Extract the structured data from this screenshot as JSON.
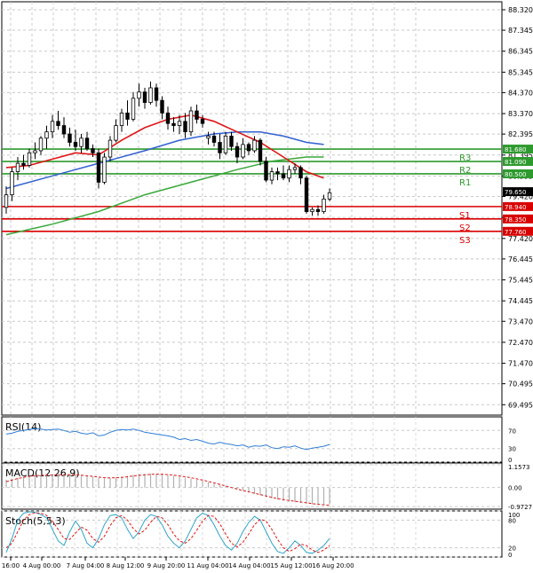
{
  "chart_data": [
    {
      "type": "candlestick",
      "ylim": [
        69.0,
        88.7
      ],
      "y_ticks": [
        "88.320",
        "87.345",
        "86.345",
        "85.345",
        "84.370",
        "83.370",
        "82.395",
        "81.395",
        "80.395",
        "79.420",
        "78.420",
        "77.420",
        "76.445",
        "75.445",
        "74.445",
        "73.470",
        "72.470",
        "71.470",
        "70.495",
        "69.495"
      ],
      "x_ticks": [
        "16:00",
        "4 Aug 00:00",
        "7 Aug 04:00",
        "8 Aug 12:00",
        "9 Aug 20:00",
        "11 Aug 04:00",
        "14 Aug 04:00",
        "15 Aug 12:00",
        "16 Aug 20:00"
      ],
      "candles": [
        {
          "o": 78.9,
          "h": 79.9,
          "l": 78.6,
          "c": 79.5
        },
        {
          "o": 79.5,
          "h": 80.8,
          "l": 79.2,
          "c": 80.6
        },
        {
          "o": 80.6,
          "h": 81.3,
          "l": 80.2,
          "c": 81.0
        },
        {
          "o": 81.0,
          "h": 81.4,
          "l": 80.7,
          "c": 80.9
        },
        {
          "o": 80.9,
          "h": 81.7,
          "l": 80.8,
          "c": 81.5
        },
        {
          "o": 81.5,
          "h": 82.0,
          "l": 81.2,
          "c": 81.6
        },
        {
          "o": 81.6,
          "h": 82.3,
          "l": 81.4,
          "c": 82.2
        },
        {
          "o": 82.2,
          "h": 82.8,
          "l": 81.7,
          "c": 82.5
        },
        {
          "o": 82.5,
          "h": 83.3,
          "l": 82.2,
          "c": 83.0
        },
        {
          "o": 83.0,
          "h": 83.5,
          "l": 82.6,
          "c": 82.8
        },
        {
          "o": 82.8,
          "h": 83.2,
          "l": 82.2,
          "c": 82.4
        },
        {
          "o": 82.4,
          "h": 82.7,
          "l": 81.8,
          "c": 82.0
        },
        {
          "o": 82.0,
          "h": 82.6,
          "l": 81.6,
          "c": 81.8
        },
        {
          "o": 81.8,
          "h": 82.4,
          "l": 81.5,
          "c": 82.2
        },
        {
          "o": 82.2,
          "h": 82.5,
          "l": 81.6,
          "c": 81.7
        },
        {
          "o": 81.7,
          "h": 81.9,
          "l": 81.3,
          "c": 81.5
        },
        {
          "o": 81.5,
          "h": 81.7,
          "l": 79.8,
          "c": 80.1
        },
        {
          "o": 80.1,
          "h": 81.5,
          "l": 80.0,
          "c": 81.3
        },
        {
          "o": 81.3,
          "h": 82.3,
          "l": 81.1,
          "c": 82.1
        },
        {
          "o": 82.1,
          "h": 83.1,
          "l": 82.0,
          "c": 82.8
        },
        {
          "o": 82.8,
          "h": 83.6,
          "l": 82.5,
          "c": 83.4
        },
        {
          "o": 83.4,
          "h": 84.0,
          "l": 82.8,
          "c": 83.1
        },
        {
          "o": 83.1,
          "h": 84.4,
          "l": 83.0,
          "c": 84.1
        },
        {
          "o": 84.1,
          "h": 84.8,
          "l": 83.7,
          "c": 84.4
        },
        {
          "o": 84.4,
          "h": 84.6,
          "l": 83.6,
          "c": 83.9
        },
        {
          "o": 83.9,
          "h": 84.9,
          "l": 83.8,
          "c": 84.6
        },
        {
          "o": 84.6,
          "h": 84.8,
          "l": 83.7,
          "c": 84.0
        },
        {
          "o": 84.0,
          "h": 84.2,
          "l": 83.1,
          "c": 83.4
        },
        {
          "o": 83.4,
          "h": 83.7,
          "l": 82.6,
          "c": 82.9
        },
        {
          "o": 82.9,
          "h": 83.2,
          "l": 82.5,
          "c": 82.8
        },
        {
          "o": 82.8,
          "h": 83.3,
          "l": 82.4,
          "c": 83.0
        },
        {
          "o": 83.0,
          "h": 83.4,
          "l": 82.2,
          "c": 82.5
        },
        {
          "o": 82.5,
          "h": 83.7,
          "l": 82.3,
          "c": 83.5
        },
        {
          "o": 83.5,
          "h": 83.8,
          "l": 82.9,
          "c": 83.1
        },
        {
          "o": 83.1,
          "h": 83.3,
          "l": 82.7,
          "c": 82.9
        },
        {
          "o": 82.2,
          "h": 82.5,
          "l": 81.9,
          "c": 82.3
        },
        {
          "o": 82.3,
          "h": 82.5,
          "l": 81.8,
          "c": 82.0
        },
        {
          "o": 82.0,
          "h": 82.4,
          "l": 81.2,
          "c": 81.5
        },
        {
          "o": 81.5,
          "h": 82.5,
          "l": 81.4,
          "c": 82.3
        },
        {
          "o": 82.3,
          "h": 82.5,
          "l": 81.6,
          "c": 81.8
        },
        {
          "o": 81.8,
          "h": 82.0,
          "l": 81.0,
          "c": 81.3
        },
        {
          "o": 81.3,
          "h": 82.2,
          "l": 81.2,
          "c": 81.9
        },
        {
          "o": 81.9,
          "h": 82.0,
          "l": 81.4,
          "c": 81.6
        },
        {
          "o": 81.6,
          "h": 82.3,
          "l": 81.5,
          "c": 82.1
        },
        {
          "o": 82.1,
          "h": 82.2,
          "l": 80.9,
          "c": 81.1
        },
        {
          "o": 81.1,
          "h": 81.3,
          "l": 80.1,
          "c": 80.2
        },
        {
          "o": 80.2,
          "h": 80.8,
          "l": 80.0,
          "c": 80.6
        },
        {
          "o": 80.6,
          "h": 80.8,
          "l": 80.2,
          "c": 80.5
        },
        {
          "o": 80.5,
          "h": 80.9,
          "l": 80.2,
          "c": 80.3
        },
        {
          "o": 80.3,
          "h": 80.9,
          "l": 80.1,
          "c": 80.7
        },
        {
          "o": 80.7,
          "h": 81.0,
          "l": 80.5,
          "c": 80.8
        },
        {
          "o": 80.8,
          "h": 80.9,
          "l": 80.0,
          "c": 80.3
        },
        {
          "o": 80.3,
          "h": 80.4,
          "l": 78.6,
          "c": 78.7
        },
        {
          "o": 78.7,
          "h": 78.9,
          "l": 78.5,
          "c": 78.8
        },
        {
          "o": 78.8,
          "h": 79.0,
          "l": 78.5,
          "c": 78.7
        },
        {
          "o": 78.7,
          "h": 79.5,
          "l": 78.6,
          "c": 79.3
        },
        {
          "o": 79.3,
          "h": 79.8,
          "l": 79.2,
          "c": 79.6
        }
      ],
      "ma_red": [
        [
          0,
          80.8
        ],
        [
          4,
          80.9
        ],
        [
          8,
          81.2
        ],
        [
          12,
          81.5
        ],
        [
          16,
          81.4
        ],
        [
          20,
          82.1
        ],
        [
          24,
          82.7
        ],
        [
          28,
          83.1
        ],
        [
          32,
          83.3
        ],
        [
          36,
          83.0
        ],
        [
          40,
          82.5
        ],
        [
          44,
          82.0
        ],
        [
          48,
          81.3
        ],
        [
          52,
          80.6
        ],
        [
          55,
          80.3
        ]
      ],
      "ma_blue": [
        [
          0,
          79.8
        ],
        [
          8,
          80.4
        ],
        [
          16,
          81.0
        ],
        [
          24,
          81.6
        ],
        [
          30,
          82.1
        ],
        [
          36,
          82.4
        ],
        [
          40,
          82.5
        ],
        [
          44,
          82.5
        ],
        [
          48,
          82.3
        ],
        [
          52,
          82.0
        ],
        [
          55,
          81.9
        ]
      ],
      "ma_green": [
        [
          0,
          77.6
        ],
        [
          8,
          78.1
        ],
        [
          16,
          78.7
        ],
        [
          24,
          79.5
        ],
        [
          32,
          80.1
        ],
        [
          40,
          80.7
        ],
        [
          46,
          81.1
        ],
        [
          52,
          81.3
        ],
        [
          55,
          81.3
        ]
      ],
      "levels": [
        {
          "name": "R3",
          "value": 81.68,
          "label": "81.680",
          "color": "#2e9a2e"
        },
        {
          "name": "R2",
          "value": 81.09,
          "label": "81.090",
          "color": "#2e9a2e"
        },
        {
          "name": "R1",
          "value": 80.5,
          "label": "80.500",
          "color": "#2e9a2e"
        },
        {
          "name": "S1",
          "value": 78.94,
          "label": "78.940",
          "color": "#d90000"
        },
        {
          "name": "S2",
          "value": 78.35,
          "label": "78.350",
          "color": "#d90000"
        },
        {
          "name": "S3",
          "value": 77.76,
          "label": "77.760",
          "color": "#d90000"
        }
      ],
      "current_price": {
        "value": 79.65,
        "label": "79.650"
      }
    },
    {
      "type": "line",
      "title": "RSI(14)",
      "y_ticks": [
        "70",
        "30",
        "0"
      ],
      "ylim": [
        0,
        100
      ],
      "values": [
        62,
        64,
        68,
        70,
        72,
        74,
        73,
        71,
        72,
        73,
        70,
        66,
        68,
        64,
        62,
        65,
        58,
        60,
        66,
        70,
        72,
        71,
        73,
        70,
        66,
        64,
        62,
        60,
        58,
        55,
        50,
        52,
        48,
        50,
        46,
        42,
        40,
        44,
        41,
        39,
        36,
        38,
        33,
        36,
        35,
        38,
        32,
        30,
        34,
        33,
        36,
        31,
        28,
        31,
        33,
        35,
        39
      ]
    },
    {
      "type": "bar",
      "title": "MACD(12,26,9)",
      "y_ticks": [
        "1.1573",
        "0.00",
        "-0.9727"
      ],
      "ylim": [
        -1.1,
        1.25
      ],
      "hist": [
        0.4,
        0.45,
        0.5,
        0.55,
        0.6,
        0.62,
        0.64,
        0.66,
        0.68,
        0.7,
        0.7,
        0.68,
        0.66,
        0.62,
        0.58,
        0.55,
        0.5,
        0.46,
        0.48,
        0.52,
        0.55,
        0.6,
        0.65,
        0.68,
        0.7,
        0.72,
        0.71,
        0.68,
        0.64,
        0.6,
        0.55,
        0.5,
        0.45,
        0.4,
        0.34,
        0.28,
        0.22,
        0.15,
        0.08,
        0.0,
        -0.08,
        -0.16,
        -0.24,
        -0.32,
        -0.4,
        -0.48,
        -0.56,
        -0.62,
        -0.68,
        -0.72,
        -0.75,
        -0.78,
        -0.82,
        -0.86,
        -0.88,
        -0.88,
        -0.86
      ],
      "signal": [
        0.3,
        0.38,
        0.46,
        0.52,
        0.57,
        0.6,
        0.62,
        0.63,
        0.64,
        0.65,
        0.66,
        0.66,
        0.65,
        0.63,
        0.6,
        0.57,
        0.53,
        0.5,
        0.49,
        0.5,
        0.52,
        0.55,
        0.59,
        0.62,
        0.65,
        0.67,
        0.68,
        0.68,
        0.66,
        0.63,
        0.59,
        0.55,
        0.5,
        0.44,
        0.38,
        0.31,
        0.24,
        0.16,
        0.08,
        0.0,
        -0.08,
        -0.15,
        -0.22,
        -0.29,
        -0.36,
        -0.43,
        -0.5,
        -0.56,
        -0.61,
        -0.66,
        -0.7,
        -0.74,
        -0.78,
        -0.82,
        -0.85,
        -0.88,
        -0.9
      ]
    },
    {
      "type": "line",
      "title": "Stoch(5,5,3)",
      "y_ticks": [
        "100",
        "80",
        "20",
        "0"
      ],
      "ylim": [
        0,
        100
      ],
      "k": [
        10,
        40,
        80,
        95,
        98,
        97,
        92,
        85,
        60,
        35,
        25,
        55,
        78,
        60,
        30,
        20,
        40,
        70,
        90,
        92,
        85,
        60,
        40,
        55,
        80,
        92,
        88,
        70,
        45,
        30,
        20,
        35,
        60,
        85,
        95,
        90,
        70,
        45,
        25,
        15,
        30,
        55,
        75,
        88,
        80,
        55,
        30,
        12,
        8,
        20,
        35,
        25,
        10,
        8,
        15,
        25,
        40
      ],
      "d": [
        20,
        30,
        55,
        80,
        92,
        96,
        95,
        90,
        78,
        60,
        40,
        38,
        52,
        65,
        58,
        40,
        32,
        45,
        68,
        85,
        90,
        80,
        62,
        50,
        58,
        75,
        88,
        85,
        70,
        50,
        35,
        30,
        40,
        58,
        78,
        90,
        88,
        72,
        50,
        30,
        22,
        32,
        50,
        70,
        82,
        78,
        60,
        38,
        20,
        12,
        18,
        28,
        25,
        15,
        10,
        15,
        25
      ]
    }
  ]
}
